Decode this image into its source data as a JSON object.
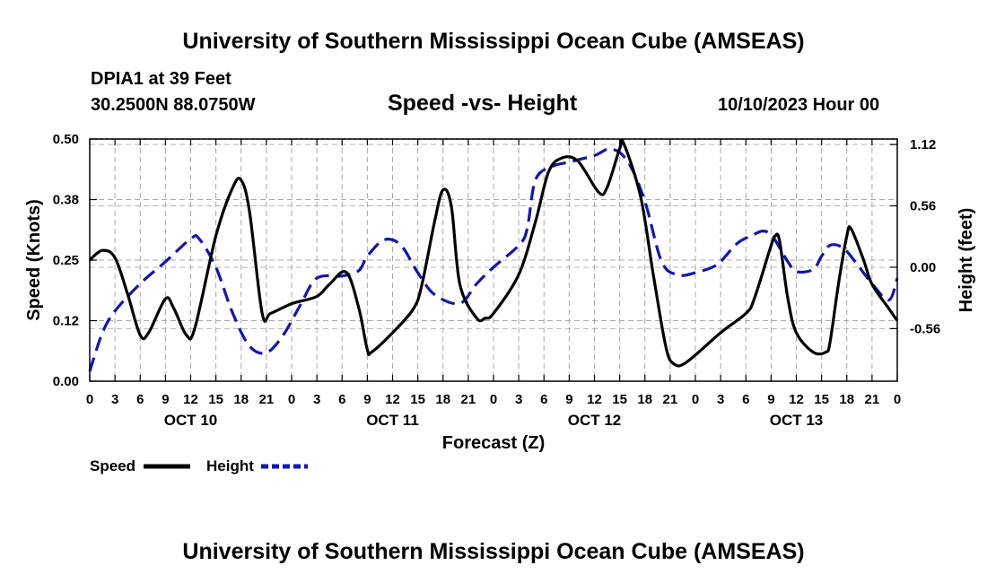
{
  "header": {
    "title": "University of Southern Mississippi Ocean Cube (AMSEAS)",
    "station": "DPIA1 at 39 Feet",
    "location": "30.2500N  88.0750W",
    "datetime": "10/10/2023 Hour 00"
  },
  "footer": {
    "title": "University of Southern Mississippi Ocean Cube (AMSEAS)"
  },
  "chart_data": {
    "type": "line",
    "title": "Speed -vs- Height",
    "xlabel": "Forecast (Z)",
    "ylabel": "Speed (Knots)",
    "y2label": "Height (feet)",
    "x_tick_labels": [
      "0",
      "3",
      "6",
      "9",
      "12",
      "15",
      "18",
      "21",
      "0",
      "3",
      "6",
      "9",
      "12",
      "15",
      "18",
      "21",
      "0",
      "3",
      "6",
      "9",
      "12",
      "15",
      "18",
      "21",
      "0",
      "3",
      "6",
      "9",
      "12",
      "15",
      "18",
      "21",
      "0"
    ],
    "x_range_hours": [
      0,
      96
    ],
    "day_labels": [
      {
        "label": "OCT 10",
        "hour": 12
      },
      {
        "label": "OCT 11",
        "hour": 36
      },
      {
        "label": "OCT 12",
        "hour": 60
      },
      {
        "label": "OCT 13",
        "hour": 84
      }
    ],
    "y_left": {
      "ticks": [
        "0.00",
        "0.12",
        "0.25",
        "0.38",
        "0.50"
      ],
      "tick_values": [
        0,
        0.125,
        0.25,
        0.375,
        0.5
      ],
      "range": [
        0,
        0.5
      ]
    },
    "y_right": {
      "ticks": [
        "-0.56",
        "0.00",
        "0.56",
        "1.12"
      ],
      "tick_values": [
        -0.56,
        0,
        0.56,
        1.12
      ],
      "range": [
        -1.04,
        1.17
      ]
    },
    "grid": true,
    "legend": [
      "Speed",
      "Height"
    ],
    "series": [
      {
        "name": "Speed",
        "axis": "left",
        "color": "#000000",
        "dash": "solid",
        "points": [
          [
            0,
            0.25
          ],
          [
            1.5,
            0.27
          ],
          [
            3,
            0.255
          ],
          [
            4.5,
            0.18
          ],
          [
            6,
            0.095
          ],
          [
            7,
            0.1
          ],
          [
            9,
            0.17
          ],
          [
            10,
            0.15
          ],
          [
            11.5,
            0.095
          ],
          [
            12.5,
            0.11
          ],
          [
            15,
            0.3
          ],
          [
            17,
            0.4
          ],
          [
            18,
            0.415
          ],
          [
            19,
            0.35
          ],
          [
            20.5,
            0.14
          ],
          [
            21.5,
            0.14
          ],
          [
            24,
            0.16
          ],
          [
            27,
            0.175
          ],
          [
            28.5,
            0.2
          ],
          [
            30.5,
            0.225
          ],
          [
            32,
            0.15
          ],
          [
            33,
            0.065
          ],
          [
            33.5,
            0.06
          ],
          [
            36,
            0.1
          ],
          [
            38.5,
            0.15
          ],
          [
            39.5,
            0.2
          ],
          [
            41,
            0.33
          ],
          [
            42,
            0.395
          ],
          [
            43,
            0.36
          ],
          [
            44,
            0.2
          ],
          [
            46,
            0.13
          ],
          [
            47,
            0.13
          ],
          [
            48,
            0.14
          ],
          [
            51,
            0.22
          ],
          [
            53,
            0.33
          ],
          [
            54.5,
            0.43
          ],
          [
            56,
            0.46
          ],
          [
            58,
            0.455
          ],
          [
            60.5,
            0.39
          ],
          [
            61.5,
            0.4
          ],
          [
            63,
            0.48
          ],
          [
            63.5,
            0.49
          ],
          [
            65.5,
            0.38
          ],
          [
            67,
            0.22
          ],
          [
            68.5,
            0.07
          ],
          [
            69.5,
            0.035
          ],
          [
            71,
            0.04
          ],
          [
            75,
            0.1
          ],
          [
            78,
            0.14
          ],
          [
            79,
            0.17
          ],
          [
            81,
            0.28
          ],
          [
            81.5,
            0.3
          ],
          [
            82,
            0.29
          ],
          [
            83,
            0.17
          ],
          [
            84,
            0.1
          ],
          [
            86,
            0.06
          ],
          [
            87.5,
            0.06
          ],
          [
            88,
            0.08
          ],
          [
            89,
            0.2
          ],
          [
            90,
            0.3
          ],
          [
            90.5,
            0.315
          ],
          [
            92,
            0.25
          ],
          [
            93,
            0.2
          ],
          [
            95,
            0.15
          ],
          [
            96,
            0.125
          ]
        ]
      },
      {
        "name": "Height",
        "axis": "right",
        "color": "#1414b4",
        "dash": "dashed",
        "points": [
          [
            0,
            -0.95
          ],
          [
            1.5,
            -0.6
          ],
          [
            3,
            -0.4
          ],
          [
            6,
            -0.15
          ],
          [
            9,
            0.05
          ],
          [
            12,
            0.26
          ],
          [
            13,
            0.26
          ],
          [
            15,
            0.0
          ],
          [
            17,
            -0.42
          ],
          [
            19,
            -0.72
          ],
          [
            21,
            -0.78
          ],
          [
            23,
            -0.62
          ],
          [
            25,
            -0.35
          ],
          [
            27,
            -0.1
          ],
          [
            30,
            -0.08
          ],
          [
            32,
            -0.03
          ],
          [
            33,
            0.1
          ],
          [
            35,
            0.25
          ],
          [
            37,
            0.2
          ],
          [
            39,
            -0.05
          ],
          [
            41,
            -0.25
          ],
          [
            44,
            -0.33
          ],
          [
            46,
            -0.15
          ],
          [
            48,
            0.0
          ],
          [
            51,
            0.2
          ],
          [
            52,
            0.35
          ],
          [
            53,
            0.8
          ],
          [
            55,
            0.92
          ],
          [
            57,
            0.96
          ],
          [
            60,
            1.02
          ],
          [
            62,
            1.08
          ],
          [
            64,
            0.96
          ],
          [
            66,
            0.6
          ],
          [
            68,
            0.05
          ],
          [
            70,
            -0.07
          ],
          [
            72,
            -0.05
          ],
          [
            74,
            0.0
          ],
          [
            75,
            0.05
          ],
          [
            77,
            0.22
          ],
          [
            79,
            0.3
          ],
          [
            80,
            0.33
          ],
          [
            81,
            0.3
          ],
          [
            82,
            0.18
          ],
          [
            83,
            0.05
          ],
          [
            84,
            -0.04
          ],
          [
            86,
            -0.02
          ],
          [
            87,
            0.1
          ],
          [
            88,
            0.2
          ],
          [
            89.5,
            0.18
          ],
          [
            91,
            0.05
          ],
          [
            93,
            -0.15
          ],
          [
            95,
            -0.3
          ],
          [
            96,
            -0.1
          ]
        ]
      }
    ]
  }
}
